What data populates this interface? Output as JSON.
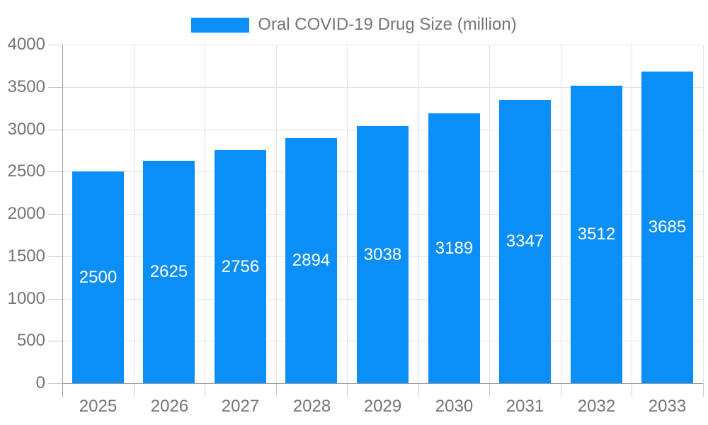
{
  "legend": {
    "label": "Oral COVID-19 Drug Size (million)"
  },
  "chart_data": {
    "type": "bar",
    "title": "Oral COVID-19 Drug Size (million)",
    "categories": [
      "2025",
      "2026",
      "2027",
      "2028",
      "2029",
      "2030",
      "2031",
      "2032",
      "2033"
    ],
    "values": [
      2500,
      2625,
      2756,
      2894,
      3038,
      3189,
      3347,
      3512,
      3685
    ],
    "xlabel": "",
    "ylabel": "",
    "ylim": [
      0,
      4000
    ],
    "yticks": [
      0,
      500,
      1000,
      1500,
      2000,
      2500,
      3000,
      3500,
      4000
    ],
    "grid": true,
    "legend_position": "top-center",
    "bar_labels_inside": true,
    "colors": {
      "bar": "#0a8ff8",
      "bar_label": "#ffffff",
      "axis_text": "#757575",
      "grid_line": "#e2e2e2",
      "tick_mark": "#c9c9c9",
      "axis_line": "#999999",
      "background": "#ffffff"
    }
  }
}
